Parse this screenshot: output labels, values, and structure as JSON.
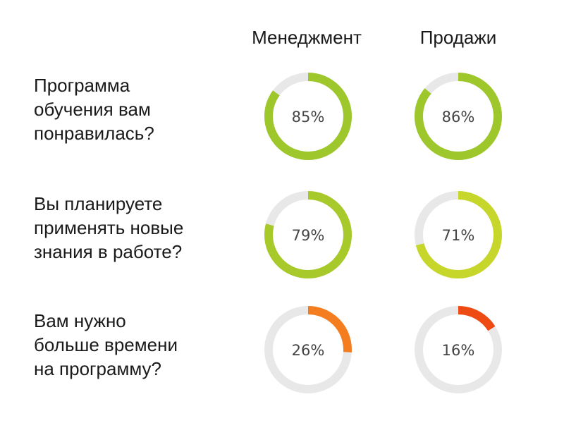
{
  "chart_data": {
    "type": "donut-grid",
    "columns": [
      "Менеджмент",
      "Продажи"
    ],
    "rows": [
      {
        "question": [
          "Программа",
          "обучения вам",
          "понравилась?"
        ],
        "values": [
          85,
          86
        ],
        "labels": [
          "85%",
          "86%"
        ],
        "colors": [
          "#9dc72b",
          "#9dc72b"
        ]
      },
      {
        "question": [
          "Вы планируете",
          "применять новые",
          "знания в работе?"
        ],
        "values": [
          79,
          71
        ],
        "labels": [
          "79%",
          "71%"
        ],
        "colors": [
          "#a7c92a",
          "#c6d62b"
        ]
      },
      {
        "question": [
          "Вам нужно",
          "больше времени",
          "на программу?"
        ],
        "values": [
          26,
          16
        ],
        "labels": [
          "26%",
          "16%"
        ],
        "colors": [
          "#f47d20",
          "#ee4b14"
        ]
      }
    ],
    "track_color": "#e8e8e8",
    "value_range": [
      0,
      100
    ],
    "unit": "%"
  }
}
